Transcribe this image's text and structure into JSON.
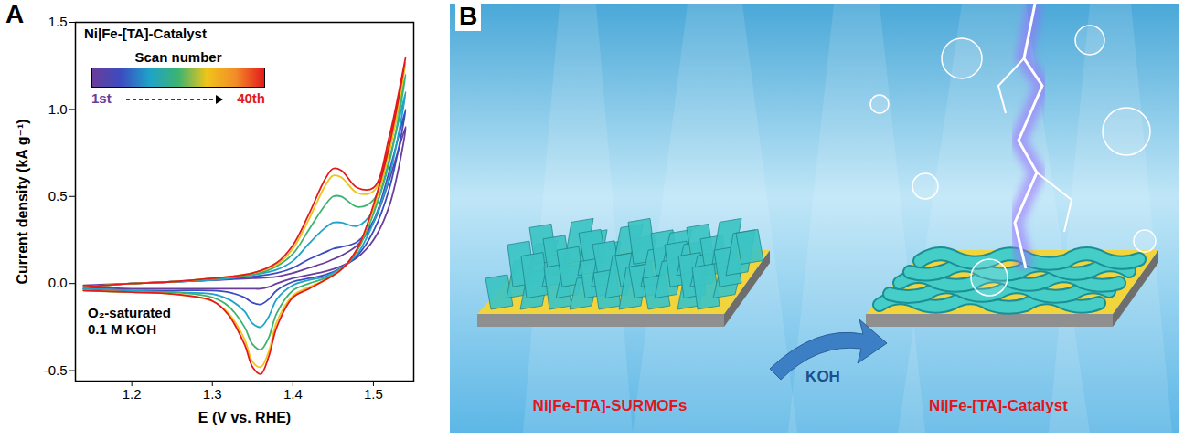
{
  "chart_data": {
    "panel_label": "A",
    "type": "line",
    "x_label": "E (V vs. RHE)",
    "y_label": "Current density (kA g⁻¹)",
    "xlim": [
      1.13,
      1.55
    ],
    "xticks": [
      1.2,
      1.3,
      1.4,
      1.5
    ],
    "ylim": [
      -0.56,
      1.5
    ],
    "yticks": [
      -0.5,
      {
        "value": 0,
        "label": "0.0"
      },
      0.5,
      {
        "value": 1,
        "label": "1.0"
      },
      1.5
    ],
    "grid": false,
    "annotations": {
      "sample": "Ni|Fe-[TA]-Catalyst",
      "conditions": [
        "O₂-saturated",
        "0.1 M KOH"
      ]
    },
    "scan_colorbar": {
      "title": "Scan number",
      "start_label": "1st",
      "end_label": "40th",
      "colors": [
        "#6a3d9a",
        "#3b4cc0",
        "#1fa3c9",
        "#3cb371",
        "#f0c419",
        "#f28c28",
        "#e31a1c"
      ]
    },
    "x": [
      1.14,
      1.2,
      1.25,
      1.3,
      1.35,
      1.38,
      1.4,
      1.42,
      1.44,
      1.45,
      1.46,
      1.48,
      1.5,
      1.52,
      1.54,
      1.52,
      1.5,
      1.48,
      1.46,
      1.44,
      1.42,
      1.4,
      1.38,
      1.37,
      1.36,
      1.35,
      1.34,
      1.32,
      1.3,
      1.25,
      1.2,
      1.14
    ],
    "series": [
      {
        "color": "#6a3d9a",
        "values": [
          -0.01,
          0.0,
          0.01,
          0.02,
          0.03,
          0.04,
          0.06,
          0.09,
          0.12,
          0.14,
          0.16,
          0.22,
          0.35,
          0.6,
          0.9,
          0.45,
          0.25,
          0.15,
          0.1,
          0.07,
          0.05,
          0.03,
          0.0,
          -0.02,
          -0.03,
          -0.03,
          -0.03,
          -0.03,
          -0.03,
          -0.03,
          -0.03,
          -0.02
        ]
      },
      {
        "color": "#3b4cc0",
        "values": [
          -0.02,
          0.0,
          0.01,
          0.02,
          0.04,
          0.06,
          0.09,
          0.14,
          0.18,
          0.2,
          0.21,
          0.24,
          0.36,
          0.65,
          1.0,
          0.55,
          0.3,
          0.16,
          0.09,
          0.05,
          0.03,
          0.01,
          -0.04,
          -0.09,
          -0.12,
          -0.11,
          -0.08,
          -0.05,
          -0.04,
          -0.04,
          -0.04,
          -0.03
        ]
      },
      {
        "color": "#1fa3c9",
        "values": [
          -0.02,
          0.0,
          0.01,
          0.02,
          0.05,
          0.08,
          0.13,
          0.23,
          0.32,
          0.35,
          0.35,
          0.33,
          0.42,
          0.72,
          1.1,
          0.62,
          0.35,
          0.17,
          0.09,
          0.04,
          0.02,
          -0.01,
          -0.09,
          -0.19,
          -0.25,
          -0.23,
          -0.16,
          -0.09,
          -0.06,
          -0.05,
          -0.04,
          -0.03
        ]
      },
      {
        "color": "#3cb371",
        "values": [
          -0.02,
          0.0,
          0.01,
          0.03,
          0.05,
          0.1,
          0.17,
          0.31,
          0.45,
          0.5,
          0.5,
          0.44,
          0.48,
          0.78,
          1.2,
          0.7,
          0.4,
          0.19,
          0.08,
          0.03,
          0.0,
          -0.04,
          -0.17,
          -0.31,
          -0.38,
          -0.35,
          -0.25,
          -0.13,
          -0.08,
          -0.05,
          -0.05,
          -0.04
        ]
      },
      {
        "color": "#f0c419",
        "values": [
          -0.02,
          0.0,
          0.01,
          0.03,
          0.06,
          0.11,
          0.2,
          0.37,
          0.56,
          0.62,
          0.61,
          0.52,
          0.53,
          0.83,
          1.27,
          0.76,
          0.43,
          0.2,
          0.08,
          0.02,
          -0.02,
          -0.07,
          -0.22,
          -0.39,
          -0.48,
          -0.45,
          -0.32,
          -0.17,
          -0.1,
          -0.06,
          -0.05,
          -0.04
        ]
      },
      {
        "color": "#e31a1c",
        "values": [
          -0.02,
          0.0,
          0.01,
          0.03,
          0.06,
          0.12,
          0.22,
          0.4,
          0.6,
          0.66,
          0.65,
          0.55,
          0.55,
          0.85,
          1.3,
          0.8,
          0.45,
          0.2,
          0.08,
          0.02,
          -0.03,
          -0.08,
          -0.25,
          -0.42,
          -0.52,
          -0.48,
          -0.35,
          -0.18,
          -0.1,
          -0.06,
          -0.05,
          -0.04
        ]
      }
    ]
  },
  "diagram": {
    "panel_label": "B",
    "labels": {
      "before": "Ni|Fe-[TA]-SURMOFs",
      "treatment": "KOH",
      "after": "Ni|Fe-[TA]-Catalyst"
    }
  }
}
